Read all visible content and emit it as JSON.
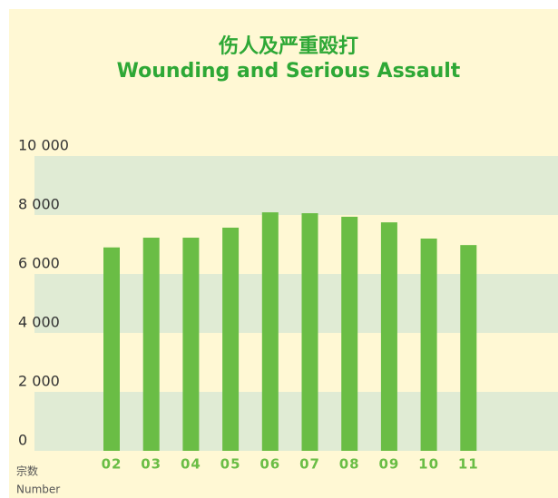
{
  "chart_data": {
    "type": "bar",
    "title": "伤人及严重殴打",
    "subtitle": "Wounding and Serious Assault",
    "ylabel": "宗数",
    "ylabel_en": "Number",
    "categories": [
      "02",
      "03",
      "04",
      "05",
      "06",
      "07",
      "08",
      "09",
      "10",
      "11"
    ],
    "values": [
      6900,
      7230,
      7230,
      7570,
      8090,
      8060,
      7940,
      7750,
      7200,
      6980
    ],
    "color": "#6abd45",
    "band_colors": [
      "#e0ebd4",
      "#fff8d4"
    ],
    "ylim": [
      0,
      10000
    ],
    "yticks": [
      0,
      {
        "value": 2000,
        "label": "2 000"
      },
      {
        "value": 4000,
        "label": "4 000"
      },
      {
        "value": 6000,
        "label": "6 000"
      },
      {
        "value": 8000,
        "label": "8 000"
      },
      {
        "value": 10000,
        "label": "10 000"
      }
    ]
  }
}
